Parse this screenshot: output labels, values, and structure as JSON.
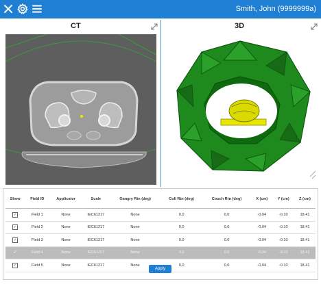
{
  "header": {
    "user": "Smith, John (9999999a)",
    "icons": [
      "close-icon",
      "gear-icon",
      "menu-icon"
    ]
  },
  "panels": {
    "ct_title": "CT",
    "view3d_title": "3D"
  },
  "table": {
    "columns": [
      "Show",
      "Field ID",
      "Applicator",
      "Scale",
      "Gangry Rtn (deg)",
      "Coll Rtn (deg)",
      "Couch Rtn (deg)",
      "X (cm)",
      "Y (cm)",
      "Z (cm)"
    ],
    "rows": [
      {
        "show": "✓",
        "field_id": "Field 1",
        "applicator": "None",
        "scale": "IEC61217",
        "gantry": "None",
        "coll": "0.0",
        "couch": "0.0",
        "x": "-0.04",
        "y": "-0.10",
        "z": "18.41"
      },
      {
        "show": "✓",
        "field_id": "Field 2",
        "applicator": "None",
        "scale": "IEC61217",
        "gantry": "None",
        "coll": "0.0",
        "couch": "0.0",
        "x": "-0.04",
        "y": "-0.10",
        "z": "18.41"
      },
      {
        "show": "✓",
        "field_id": "Field 3",
        "applicator": "None",
        "scale": "IEC61217",
        "gantry": "None",
        "coll": "0.0",
        "couch": "0.0",
        "x": "-0.04",
        "y": "-0.10",
        "z": "18.41"
      },
      {
        "show": "✓",
        "field_id": "Field 4",
        "applicator": "None",
        "scale": "IEC61217",
        "gantry": "None",
        "coll": "0.0",
        "couch": "0.0",
        "x": "-0.04",
        "y": "-0.10",
        "z": "18.41"
      },
      {
        "show": "✓",
        "field_id": "Field 5",
        "applicator": "None",
        "scale": "IEC61217",
        "gantry": "None",
        "coll": "0.0",
        "couch": "0.0",
        "x": "-0.04",
        "y": "-0.10",
        "z": "18.41"
      }
    ],
    "selected_index": 3
  },
  "apply_label": "Apply",
  "colors": {
    "accent": "#1f7fd3",
    "ct_background": "#5e5e5e",
    "beam_green": "#1e8a1e",
    "target_yellow": "#e6e600",
    "selected_row": "#bcbcbc"
  }
}
